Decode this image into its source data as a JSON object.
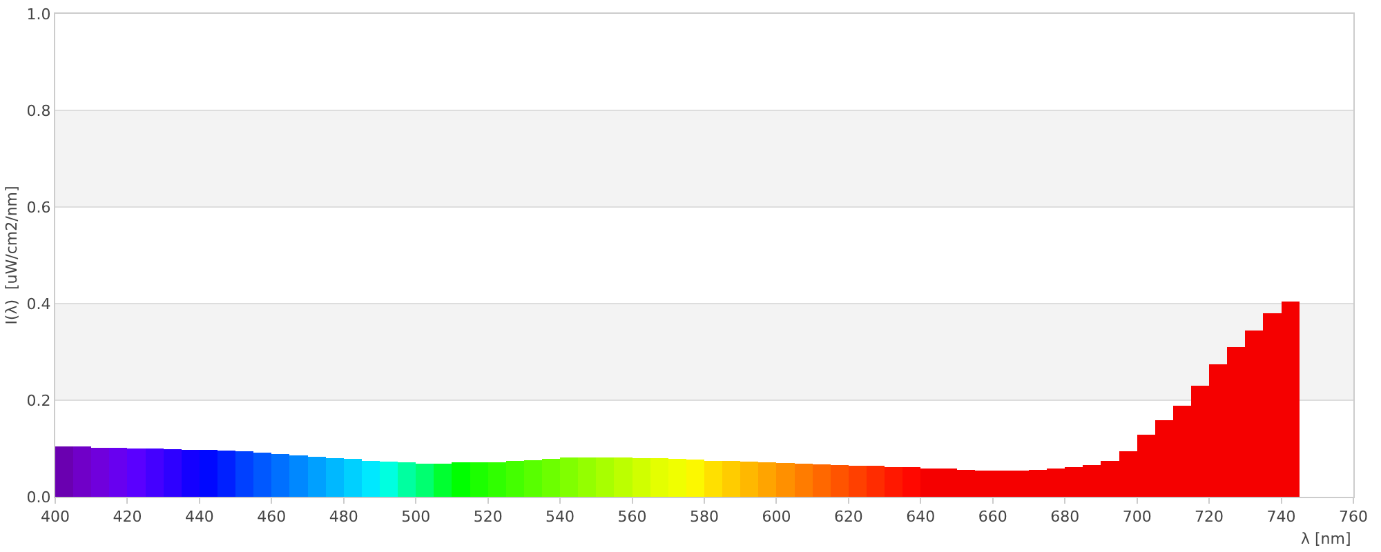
{
  "chart_data": {
    "type": "bar",
    "xlabel": "λ [nm]",
    "ylabel": "I(λ)  [uW/cm2/nm]",
    "x": [
      402.5,
      407.5,
      412.5,
      417.5,
      422.5,
      427.5,
      432.5,
      437.5,
      442.5,
      447.5,
      452.5,
      457.5,
      462.5,
      467.5,
      472.5,
      477.5,
      482.5,
      487.5,
      492.5,
      497.5,
      502.5,
      507.5,
      512.5,
      517.5,
      522.5,
      527.5,
      532.5,
      537.5,
      542.5,
      547.5,
      552.5,
      557.5,
      562.5,
      567.5,
      572.5,
      577.5,
      582.5,
      587.5,
      592.5,
      597.5,
      602.5,
      607.5,
      612.5,
      617.5,
      622.5,
      627.5,
      632.5,
      637.5,
      642.5,
      647.5,
      652.5,
      657.5,
      662.5,
      667.5,
      672.5,
      677.5,
      682.5,
      687.5,
      692.5,
      697.5,
      702.5,
      707.5,
      712.5,
      717.5,
      722.5,
      727.5,
      732.5,
      737.5,
      742.5
    ],
    "values": [
      0.105,
      0.105,
      0.102,
      0.102,
      0.1,
      0.1,
      0.099,
      0.097,
      0.097,
      0.096,
      0.094,
      0.091,
      0.089,
      0.086,
      0.083,
      0.08,
      0.078,
      0.075,
      0.073,
      0.072,
      0.069,
      0.069,
      0.071,
      0.072,
      0.072,
      0.074,
      0.076,
      0.079,
      0.081,
      0.082,
      0.082,
      0.082,
      0.08,
      0.08,
      0.079,
      0.077,
      0.075,
      0.075,
      0.073,
      0.072,
      0.07,
      0.069,
      0.067,
      0.066,
      0.065,
      0.064,
      0.062,
      0.061,
      0.059,
      0.058,
      0.056,
      0.055,
      0.055,
      0.055,
      0.056,
      0.058,
      0.061,
      0.066,
      0.074,
      0.095,
      0.128,
      0.158,
      0.188,
      0.23,
      0.275,
      0.31,
      0.345,
      0.38,
      0.405
    ],
    "colors": [
      "#6a00b0",
      "#7000c8",
      "#7000dc",
      "#6800f0",
      "#5a00ff",
      "#4400ff",
      "#2e00ff",
      "#1400ff",
      "#0008ff",
      "#0020ff",
      "#0040ff",
      "#0058ff",
      "#0070ff",
      "#0088ff",
      "#00a0ff",
      "#00b8ff",
      "#00d0ff",
      "#00e8ff",
      "#00ffe0",
      "#00ffa0",
      "#00ff70",
      "#00ff30",
      "#00ff00",
      "#1cff00",
      "#30ff00",
      "#44ff00",
      "#58ff00",
      "#6cff00",
      "#80ff00",
      "#94ff00",
      "#a8ff00",
      "#bcff00",
      "#d0ff00",
      "#e4ff00",
      "#f0ff00",
      "#fcf800",
      "#ffe000",
      "#ffcc00",
      "#ffb800",
      "#ffa400",
      "#ff9000",
      "#ff7c00",
      "#ff6800",
      "#ff5400",
      "#ff4000",
      "#ff2c00",
      "#ff1800",
      "#ff0800",
      "#f50000",
      "#f50000",
      "#f50000",
      "#f50000",
      "#f50000",
      "#f50000",
      "#f50000",
      "#f50000",
      "#f50000",
      "#f50000",
      "#f50000",
      "#f50000",
      "#f50000",
      "#f50000",
      "#f50000",
      "#f50000",
      "#f50000",
      "#f50000",
      "#f50000",
      "#f50000",
      "#f50000"
    ],
    "xlim": [
      400,
      760
    ],
    "xticks": [
      400,
      420,
      440,
      460,
      480,
      500,
      520,
      540,
      560,
      580,
      600,
      620,
      640,
      660,
      680,
      700,
      720,
      740,
      760
    ],
    "ylim": [
      0,
      1
    ],
    "yticks": [
      {
        "value": 0,
        "label": "0.0"
      },
      {
        "value": 0.2,
        "label": "0.2"
      },
      {
        "value": 0.4,
        "label": "0.4"
      },
      {
        "value": 0.6,
        "label": "0.6"
      },
      {
        "value": 0.8,
        "label": "0.8"
      },
      {
        "value": 1,
        "label": "1.0"
      }
    ],
    "bands": [
      {
        "axis": "y",
        "from": 0.2,
        "to": 0.4,
        "color": "#f3f3f3"
      },
      {
        "axis": "y",
        "from": 0.6,
        "to": 0.8,
        "color": "#f3f3f3"
      }
    ],
    "grid": "y"
  }
}
